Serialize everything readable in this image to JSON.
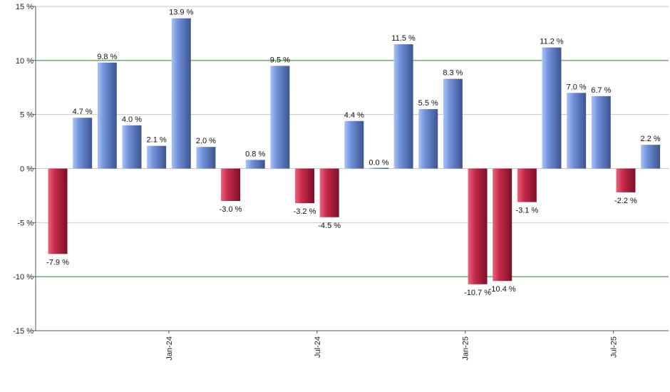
{
  "chart_data": {
    "type": "bar",
    "title": "",
    "xlabel": "",
    "ylabel": "",
    "ylim": [
      -15,
      15
    ],
    "y_ticks": [
      15,
      10,
      5,
      0,
      -5,
      -10,
      -15
    ],
    "y_tick_labels": [
      "15 %",
      "10 %",
      "5 %",
      "0 %",
      "-5 %",
      "-10 %",
      "-15 %"
    ],
    "x_tick_labels": [
      {
        "label": "Jan-24",
        "after_index": 4
      },
      {
        "label": "Jul-24",
        "after_index": 10
      },
      {
        "label": "Jan-25",
        "after_index": 16
      },
      {
        "label": "Jul-25",
        "after_index": 22
      }
    ],
    "values": [
      -7.9,
      4.7,
      9.8,
      4.0,
      2.1,
      13.9,
      2.0,
      -3.0,
      0.8,
      9.5,
      -3.2,
      -4.5,
      4.4,
      0.0,
      11.5,
      5.5,
      8.3,
      -10.7,
      -10.4,
      -3.1,
      11.2,
      7.0,
      6.7,
      -2.2,
      2.2
    ],
    "labels": [
      "-7.9 %",
      "4.7 %",
      "9.8 %",
      "4.0 %",
      "2.1 %",
      "13.9 %",
      "2.0 %",
      "-3.0 %",
      "0.8 %",
      "9.5 %",
      "-3.2 %",
      "-4.5 %",
      "4.4 %",
      "0.0 %",
      "11.5 %",
      "5.5 %",
      "8.3 %",
      "-10.7 %",
      "-10.4 %",
      "-3.1 %",
      "11.2 %",
      "7.0 %",
      "6.7 %",
      "-2.2 %",
      "2.2 %"
    ],
    "highlight_lines": [
      10,
      -10
    ],
    "colors": {
      "positive_light": "#a9c4f5",
      "positive_mid": "#6e8fd8",
      "positive_dark": "#3d5590",
      "negative_light": "#e9657e",
      "negative_mid": "#c62a4a",
      "negative_dark": "#7e0f27",
      "grid": "#c8c8c8",
      "highlight": "#2e7d32",
      "axis": "#555555"
    }
  }
}
